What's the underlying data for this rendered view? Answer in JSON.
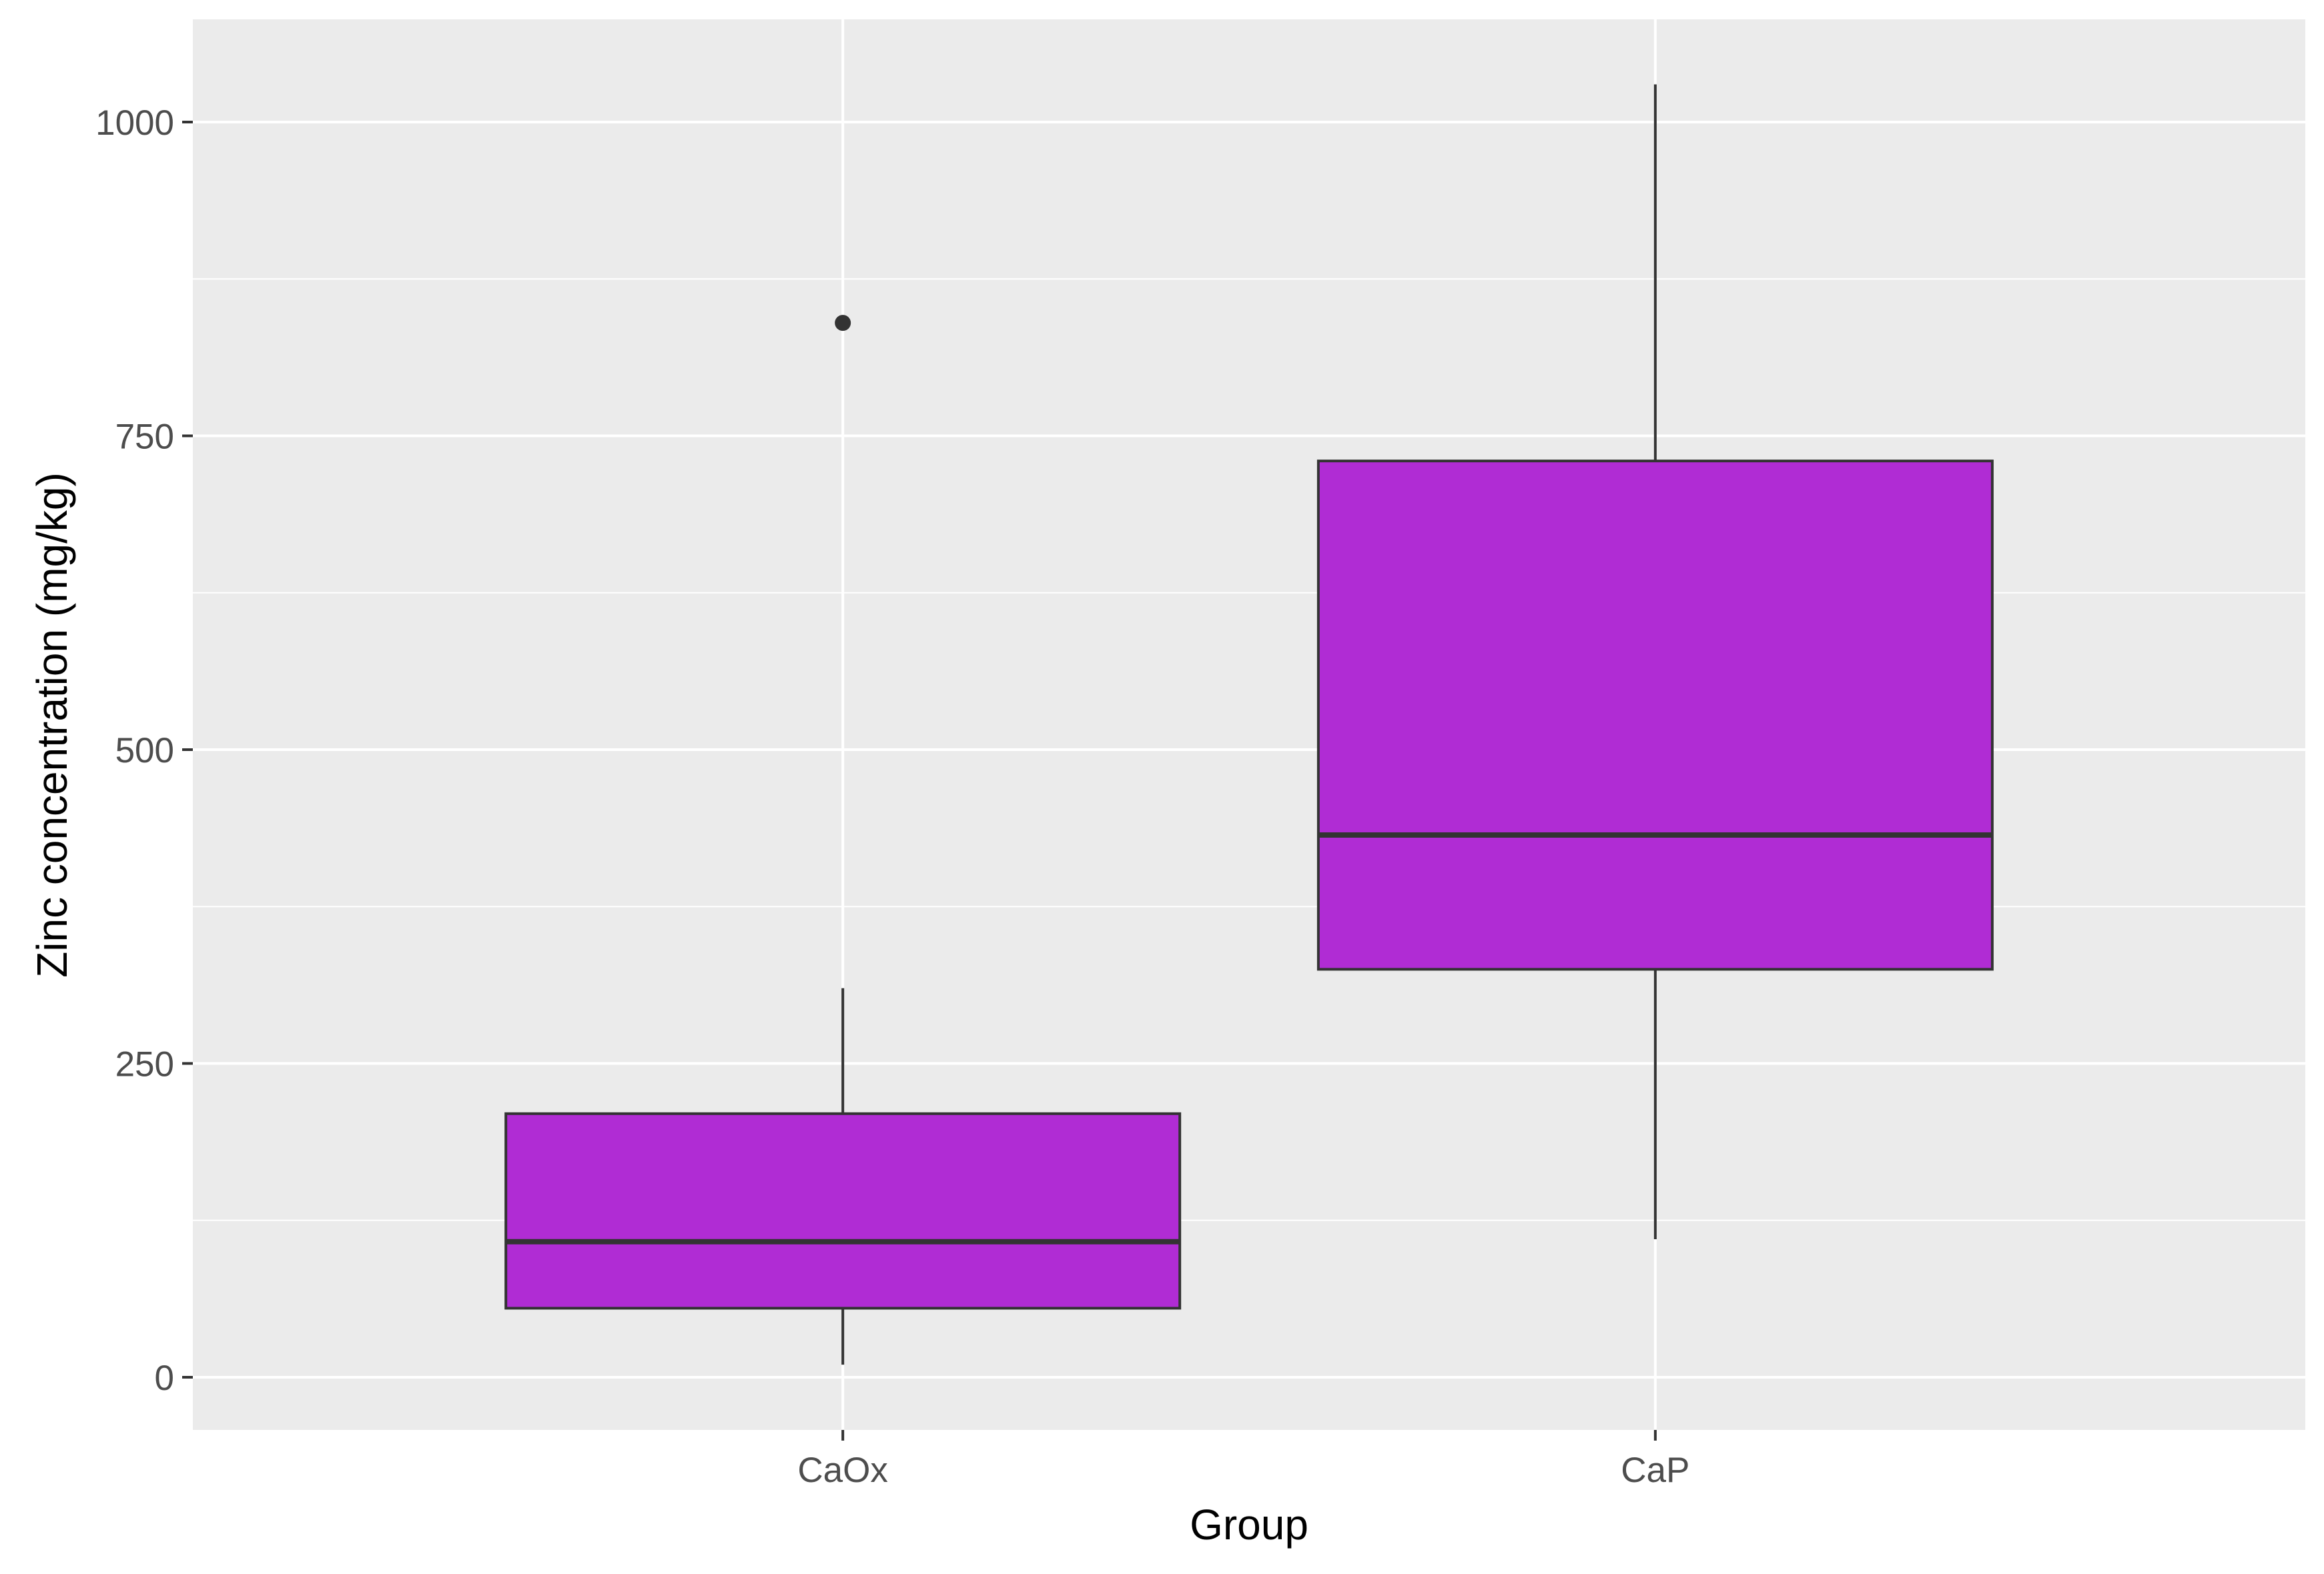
{
  "chart_data": {
    "type": "boxplot",
    "xlabel": "Group",
    "ylabel": "Zinc concentration (mg/kg)",
    "categories": [
      "CaOx",
      "CaP"
    ],
    "boxes": [
      {
        "category": "CaOx",
        "whisker_low": 10,
        "q1": 55,
        "median": 108,
        "q3": 210,
        "whisker_high": 310,
        "outliers": [
          840
        ]
      },
      {
        "category": "CaP",
        "whisker_low": 110,
        "q1": 325,
        "median": 432,
        "q3": 730,
        "whisker_high": 1030,
        "outliers": []
      }
    ],
    "y_ticks": [
      0,
      250,
      500,
      750,
      1000
    ],
    "y_tick_labels": [
      "0",
      "250",
      "500",
      "750",
      "1000"
    ],
    "ylim": [
      -40,
      1080
    ],
    "grid": true,
    "colors": {
      "panel_background": "#ebebeb",
      "grid_line": "#ffffff",
      "box_fill": "#b02cd4",
      "box_outline": "#333333",
      "tick_label": "#4d4d4d"
    }
  }
}
